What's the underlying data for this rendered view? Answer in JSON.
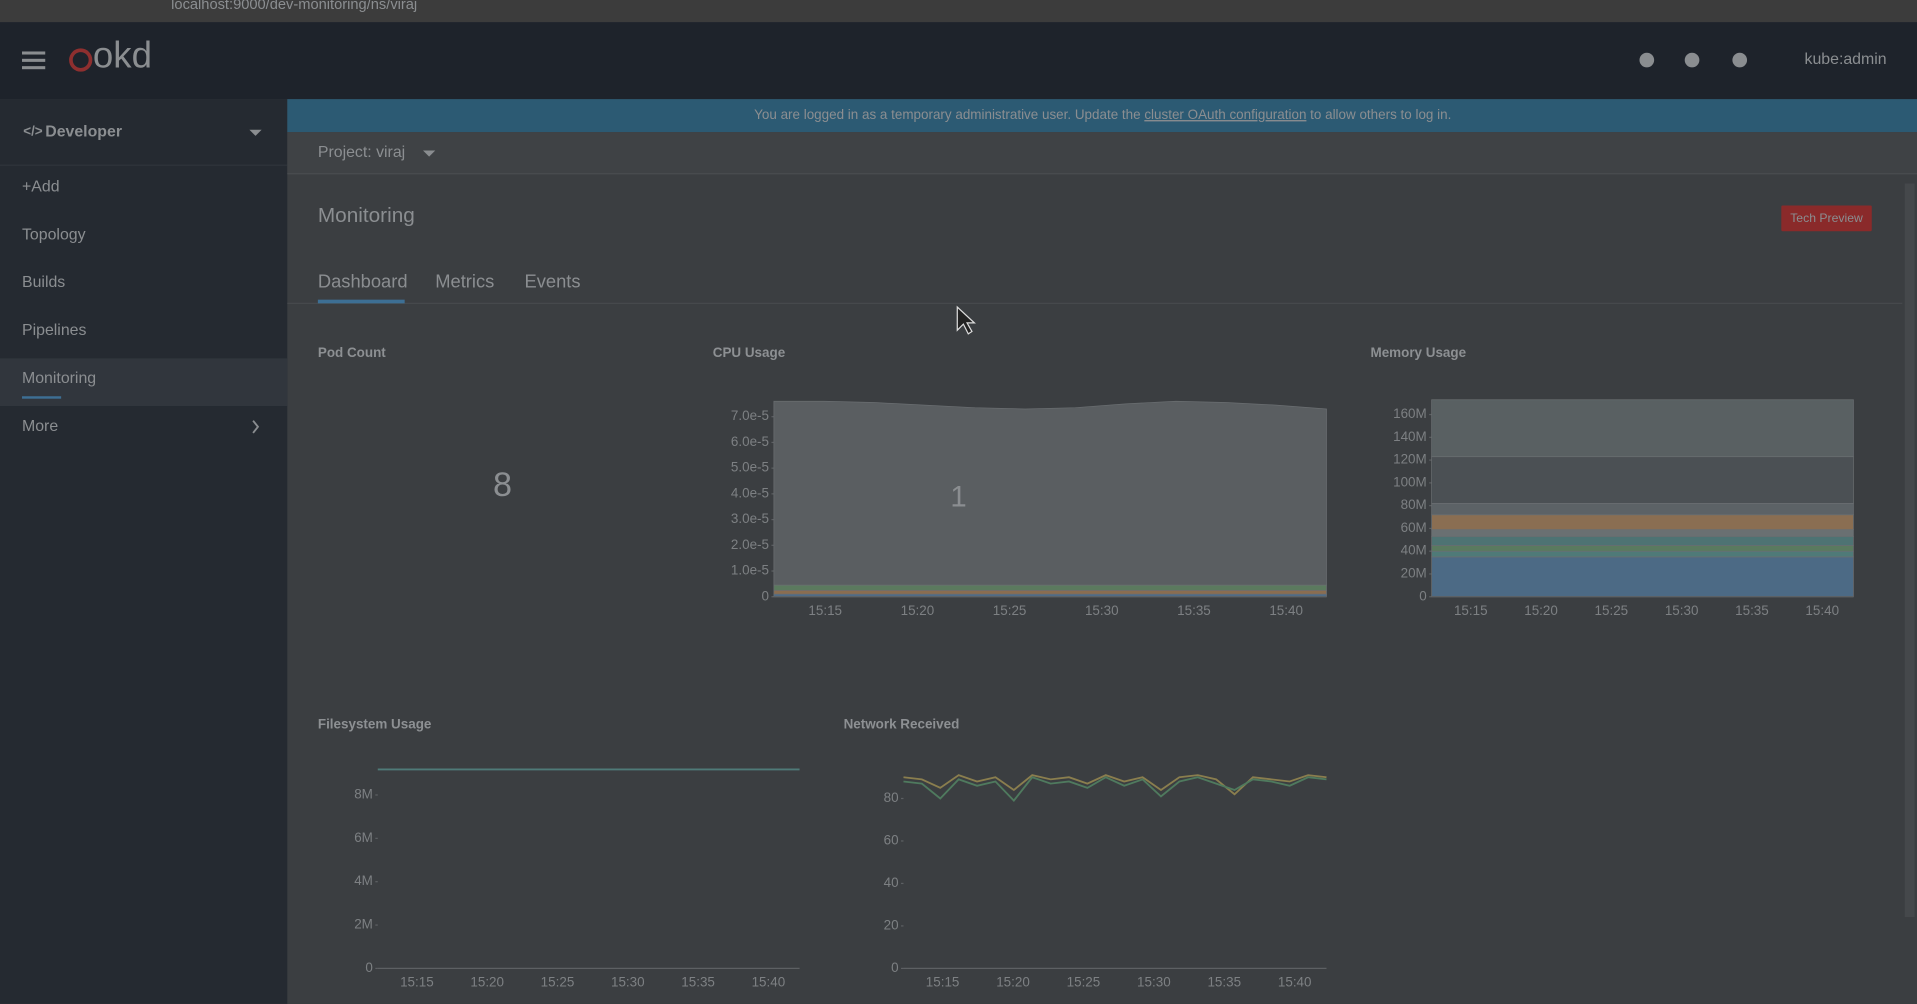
{
  "browser": {
    "url": "localhost:9000/dev-monitoring/ns/viraj"
  },
  "header": {
    "logo": "okd",
    "user": "kube:admin"
  },
  "nav": {
    "perspective": "Developer",
    "items": [
      "+Add",
      "Topology",
      "Builds",
      "Pipelines",
      "Monitoring",
      "More"
    ]
  },
  "banner": {
    "before": "You are logged in as a temporary administrative user. Update the",
    "link": "cluster OAuth configuration",
    "after": "to allow others to log in."
  },
  "project": "Project: viraj",
  "page": {
    "title": "Monitoring",
    "badge": "Tech Preview",
    "tabs": [
      "Dashboard",
      "Metrics",
      "Events"
    ]
  },
  "cards": [
    {
      "title": "Pod Count",
      "value": 8
    },
    {
      "title": "CPU Usage",
      "overlay": 1,
      "chart": {
        "type": "area",
        "ylim": [
          0,
          7.7e-05
        ],
        "yticks": [
          0,
          {
            "value": 1e-05,
            "label": "1.0e-5"
          },
          {
            "value": 2e-05,
            "label": "2.0e-5"
          },
          {
            "value": 3e-05,
            "label": "3.0e-5"
          },
          {
            "value": 4e-05,
            "label": "4.0e-5"
          },
          {
            "value": 5e-05,
            "label": "5.0e-5"
          },
          {
            "value": 6e-05,
            "label": "6.0e-5"
          },
          {
            "value": 7e-05,
            "label": "7.0e-5"
          }
        ],
        "xticks": [
          "15:15",
          "15:20",
          "15:25",
          "15:30",
          "15:35",
          "15:40"
        ],
        "series": [
          {
            "color": "#4f6b86",
            "values": [
              1e-06,
              1e-06,
              1e-06,
              1e-06,
              1e-06,
              1e-06,
              1e-06,
              1e-06,
              1e-06,
              1e-06,
              1e-06,
              1e-06
            ]
          },
          {
            "color": "#8a6d50",
            "values": [
              1.5e-06,
              1.5e-06,
              1.5e-06,
              1.5e-06,
              1.5e-06,
              1.5e-06,
              1.5e-06,
              1.5e-06,
              1.5e-06,
              1.5e-06,
              1.5e-06,
              1.5e-06
            ]
          },
          {
            "color": "#5b7a5e",
            "values": [
              2e-06,
              2e-06,
              2e-06,
              2e-06,
              2e-06,
              2e-06,
              2e-06,
              2e-06,
              2e-06,
              2e-06,
              2e-06,
              2e-06
            ]
          },
          {
            "color": "#5a5e61",
            "values": [
              7.15e-05,
              7.15e-05,
              7.1e-05,
              7e-05,
              6.9e-05,
              6.85e-05,
              6.9e-05,
              7.05e-05,
              7.15e-05,
              7.1e-05,
              7e-05,
              6.85e-05
            ]
          }
        ]
      }
    },
    {
      "title": "Memory Usage",
      "chart": {
        "type": "bands",
        "ylim": [
          0,
          175000000
        ],
        "yticks": [
          0,
          {
            "value": 20000000,
            "label": "20M"
          },
          {
            "value": 40000000,
            "label": "40M"
          },
          {
            "value": 60000000,
            "label": "60M"
          },
          {
            "value": 80000000,
            "label": "80M"
          },
          {
            "value": 100000000,
            "label": "100M"
          },
          {
            "value": 120000000,
            "label": "120M"
          },
          {
            "value": 140000000,
            "label": "140M"
          },
          {
            "value": 160000000,
            "label": "160M"
          }
        ],
        "xticks": [
          "15:15",
          "15:20",
          "15:25",
          "15:30",
          "15:35",
          "15:40"
        ],
        "series": [
          {
            "color": "#4c6a85",
            "value": 35000000
          },
          {
            "color": "#4f7a78",
            "value": 5000000
          },
          {
            "color": "#5a7a5f",
            "value": 5000000
          },
          {
            "color": "#4e7373",
            "value": 8000000
          },
          {
            "color": "#6a7072",
            "value": 6000000
          },
          {
            "color": "#8a6e52",
            "value": 13000000
          },
          {
            "color": "#5c6266",
            "value": 10000000
          },
          {
            "color": "#4b5054",
            "value": 41000000
          },
          {
            "color": "#596062",
            "value": 50000000
          }
        ]
      }
    }
  ],
  "cards_bottom": [
    {
      "title": "Filesystem Usage",
      "chart": {
        "type": "line",
        "ylim": [
          0,
          9700000
        ],
        "yticks": [
          0,
          {
            "value": 2000000,
            "label": "2M"
          },
          {
            "value": 4000000,
            "label": "4M"
          },
          {
            "value": 6000000,
            "label": "6M"
          },
          {
            "value": 8000000,
            "label": "8M"
          }
        ],
        "xticks": [
          "15:15",
          "15:20",
          "15:25",
          "15:30",
          "15:35",
          "15:40"
        ],
        "series": [
          {
            "color": "#4f7a78",
            "values": [
              9180000,
              9180000
            ]
          }
        ]
      }
    },
    {
      "title": "Network Received",
      "chart": {
        "type": "line",
        "ylim": [
          0,
          99
        ],
        "yticks": [
          0,
          20,
          40,
          60,
          80
        ],
        "xticks": [
          "15:15",
          "15:20",
          "15:25",
          "15:30",
          "15:35",
          "15:40"
        ],
        "series": [
          {
            "color": "#8a7e4e",
            "values": [
              90,
              89,
              85,
              91,
              88,
              90,
              84,
              91,
              89,
              90,
              87,
              91,
              88,
              90,
              84,
              90,
              91,
              89,
              82,
              90,
              89,
              88,
              91,
              90
            ]
          },
          {
            "color": "#4f7a5e",
            "values": [
              88,
              87,
              80,
              89,
              86,
              88,
              79,
              90,
              87,
              88,
              85,
              90,
              86,
              89,
              81,
              88,
              90,
              87,
              84,
              89,
              88,
              86,
              90,
              89
            ]
          }
        ]
      }
    }
  ]
}
